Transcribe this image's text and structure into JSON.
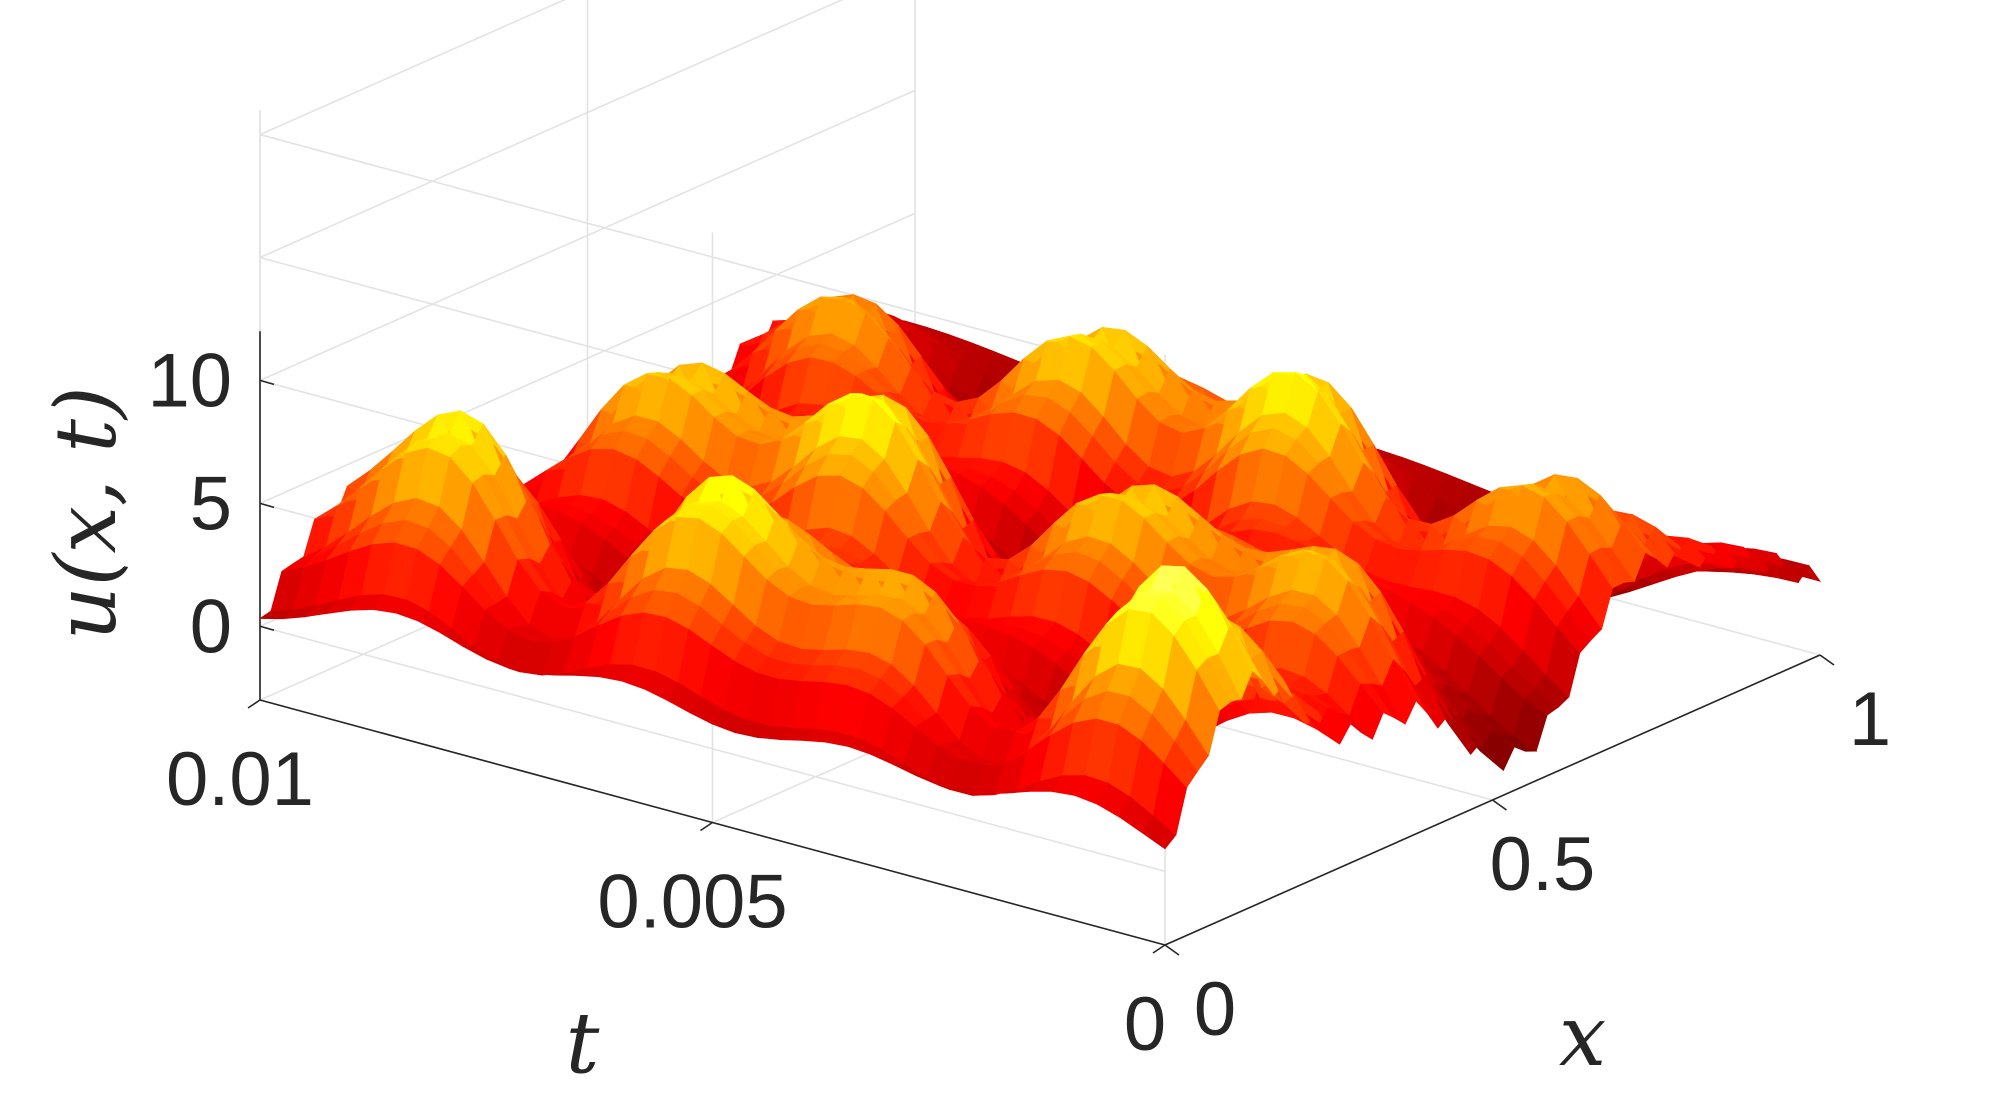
{
  "chart_data": {
    "type": "surface",
    "ylabel": "u(x, t)",
    "xlabel": "x",
    "tlabel": "t",
    "x_ticks": [
      {
        "value": 0,
        "label": "0"
      },
      {
        "value": 0.5,
        "label": "0.5"
      },
      {
        "value": 1,
        "label": "1"
      }
    ],
    "t_ticks": [
      {
        "value": 0,
        "label": "0"
      },
      {
        "value": 0.005,
        "label": "0.005"
      },
      {
        "value": 0.01,
        "label": "0.01"
      }
    ],
    "u_ticks": [
      {
        "value": 0,
        "label": "0"
      },
      {
        "value": 5,
        "label": "5"
      },
      {
        "value": 10,
        "label": "10"
      }
    ],
    "xlim": [
      0,
      1
    ],
    "tlim": [
      0,
      0.01
    ],
    "zlim": [
      -3,
      21
    ],
    "grid": true,
    "colormap": "hot",
    "clip_color": "#0000ff",
    "x_peaks": [
      0.12,
      0.4,
      0.7
    ],
    "t_ridges": [
      0.001,
      0.0035,
      0.006,
      0.0085
    ],
    "peak_height": 8.8,
    "ripple_amplitude": 0.5,
    "ripple_frequency": 40
  }
}
